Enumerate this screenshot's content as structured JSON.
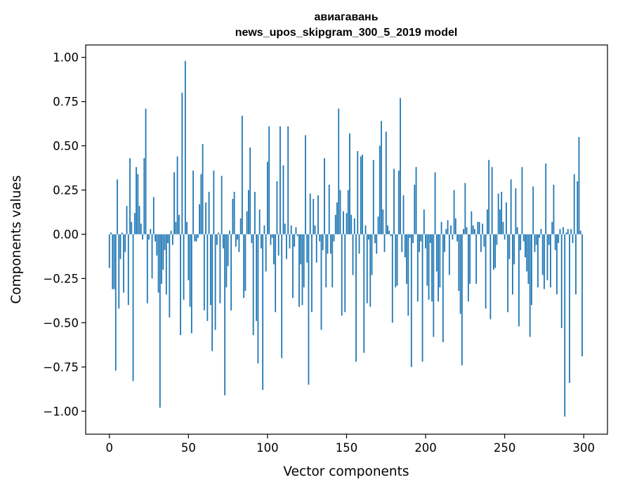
{
  "chart_data": {
    "type": "bar",
    "title_lines": [
      "авиагавань",
      "news_upos_skipgram_300_5_2019 model"
    ],
    "xlabel": "Vector components",
    "ylabel": "Components values",
    "xlim": [
      -15,
      315
    ],
    "ylim": [
      -1.13,
      1.07
    ],
    "xticks": [
      0,
      50,
      100,
      150,
      200,
      250,
      300
    ],
    "xtick_labels": [
      "0",
      "50",
      "100",
      "150",
      "200",
      "250",
      "300"
    ],
    "yticks": [
      1.0,
      0.75,
      0.5,
      0.25,
      0.0,
      -0.25,
      -0.5,
      -0.75,
      -1.0
    ],
    "ytick_labels": [
      "1.00",
      "0.75",
      "0.50",
      "0.25",
      "0.00",
      "−0.25",
      "−0.50",
      "−0.75",
      "−1.00"
    ],
    "grid": false,
    "bar_color": "#1f77b4",
    "x": "components 0–299",
    "values": [
      -0.19,
      0.01,
      -0.31,
      -0.31,
      -0.77,
      0.31,
      -0.42,
      -0.14,
      0.01,
      -0.33,
      -0.1,
      0.16,
      -0.4,
      0.43,
      0.07,
      -0.83,
      0.12,
      0.38,
      0.34,
      0.16,
      0.06,
      -0.03,
      0.43,
      0.71,
      -0.39,
      -0.03,
      0.03,
      -0.25,
      0.21,
      -0.04,
      -0.12,
      -0.33,
      -0.98,
      -0.28,
      -0.2,
      -0.09,
      -0.34,
      -0.05,
      -0.47,
      0.02,
      -0.06,
      0.35,
      0.07,
      0.44,
      0.11,
      -0.57,
      0.8,
      -0.37,
      0.98,
      0.07,
      -0.26,
      -0.41,
      -0.56,
      0.36,
      -0.04,
      -0.04,
      -0.02,
      0.17,
      0.34,
      0.51,
      -0.43,
      0.18,
      -0.49,
      0.24,
      -0.4,
      -0.66,
      0.36,
      -0.54,
      -0.06,
      0.01,
      -0.39,
      0.33,
      -0.08,
      -0.91,
      -0.3,
      -0.18,
      0.02,
      -0.43,
      0.2,
      0.24,
      -0.07,
      -0.03,
      -0.1,
      0.09,
      0.67,
      -0.36,
      -0.32,
      0.13,
      0.25,
      0.49,
      -0.05,
      -0.57,
      0.24,
      -0.49,
      -0.73,
      0.14,
      -0.08,
      -0.88,
      0.05,
      -0.21,
      0.41,
      0.61,
      -0.06,
      -0.02,
      -0.17,
      -0.44,
      0.3,
      -0.12,
      0.61,
      -0.7,
      0.39,
      0.06,
      -0.14,
      0.61,
      -0.08,
      0.05,
      -0.36,
      -0.07,
      0.04,
      -0.01,
      -0.41,
      -0.17,
      -0.4,
      -0.3,
      0.56,
      -0.16,
      -0.85,
      0.23,
      -0.44,
      0.2,
      0.05,
      -0.16,
      0.22,
      -0.04,
      -0.54,
      -0.09,
      0.43,
      -0.3,
      -0.11,
      0.28,
      -0.11,
      -0.3,
      -0.04,
      0.11,
      0.18,
      0.71,
      0.25,
      -0.46,
      0.13,
      -0.44,
      0.12,
      0.25,
      0.57,
      0.11,
      -0.23,
      0.09,
      -0.72,
      0.47,
      -0.11,
      0.44,
      0.45,
      -0.67,
      0.05,
      -0.39,
      -0.03,
      -0.41,
      -0.23,
      0.42,
      -0.05,
      -0.11,
      0.1,
      0.5,
      0.64,
      0.14,
      -0.1,
      0.58,
      0.05,
      0.02,
      -0.01,
      -0.5,
      0.37,
      -0.3,
      -0.29,
      0.36,
      0.77,
      -0.1,
      0.22,
      -0.13,
      -0.28,
      -0.46,
      -0.02,
      -0.75,
      -0.05,
      0.28,
      0.38,
      -0.38,
      -0.1,
      -0.04,
      -0.72,
      0.14,
      -0.08,
      -0.29,
      -0.37,
      -0.05,
      -0.38,
      -0.58,
      0.35,
      -0.21,
      -0.38,
      -0.3,
      0.07,
      -0.61,
      -0.1,
      0.03,
      0.08,
      -0.23,
      0.05,
      -0.03,
      0.25,
      0.09,
      -0.04,
      -0.32,
      -0.45,
      -0.74,
      0.03,
      0.29,
      0.04,
      -0.38,
      -0.28,
      0.13,
      0.05,
      0.03,
      -0.28,
      0.07,
      0.07,
      -0.1,
      0.06,
      -0.07,
      -0.42,
      0.14,
      0.42,
      -0.48,
      0.38,
      -0.2,
      -0.19,
      -0.06,
      0.23,
      0.14,
      0.24,
      0.07,
      -0.03,
      0.18,
      -0.44,
      -0.14,
      0.31,
      -0.34,
      -0.17,
      0.26,
      0.04,
      -0.52,
      -0.09,
      0.38,
      -0.04,
      -0.13,
      -0.21,
      -0.28,
      -0.58,
      -0.4,
      0.27,
      -0.1,
      -0.06,
      -0.3,
      -0.02,
      0.03,
      -0.23,
      -0.31,
      0.4,
      -0.26,
      -0.06,
      -0.3,
      0.07,
      0.28,
      -0.09,
      -0.34,
      -0.05,
      0.03,
      -0.53,
      0.04,
      -1.03,
      0.01,
      0.03,
      -0.84,
      0.03,
      -0.05,
      0.34,
      -0.34,
      0.3,
      0.55,
      0.02,
      -0.69
    ]
  }
}
